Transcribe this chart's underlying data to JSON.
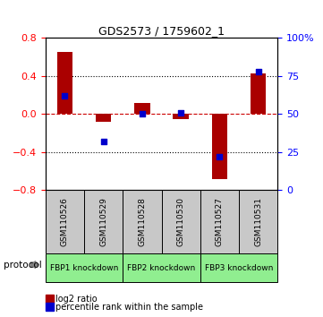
{
  "title": "GDS2573 / 1759602_1",
  "samples": [
    "GSM110526",
    "GSM110529",
    "GSM110528",
    "GSM110530",
    "GSM110527",
    "GSM110531"
  ],
  "log2_ratio": [
    0.65,
    -0.08,
    0.12,
    -0.05,
    -0.68,
    0.43
  ],
  "percentile_rank": [
    62,
    32,
    50,
    51,
    22,
    78
  ],
  "ylim_left": [
    -0.8,
    0.8
  ],
  "ylim_right": [
    0,
    100
  ],
  "yticks_left": [
    -0.8,
    -0.4,
    0.0,
    0.4,
    0.8
  ],
  "yticks_right": [
    0,
    25,
    50,
    75,
    100
  ],
  "bar_color": "#aa0000",
  "dot_color": "#0000cc",
  "dashed_line_color": "#cc0000",
  "bar_width": 0.4,
  "dot_size": 25,
  "protocol_label": "protocol",
  "gray_color": "#c8c8c8",
  "green_color": "#90ee90",
  "legend_items": [
    {
      "label": "log2 ratio",
      "color": "#aa0000"
    },
    {
      "label": "percentile rank within the sample",
      "color": "#0000cc"
    }
  ]
}
